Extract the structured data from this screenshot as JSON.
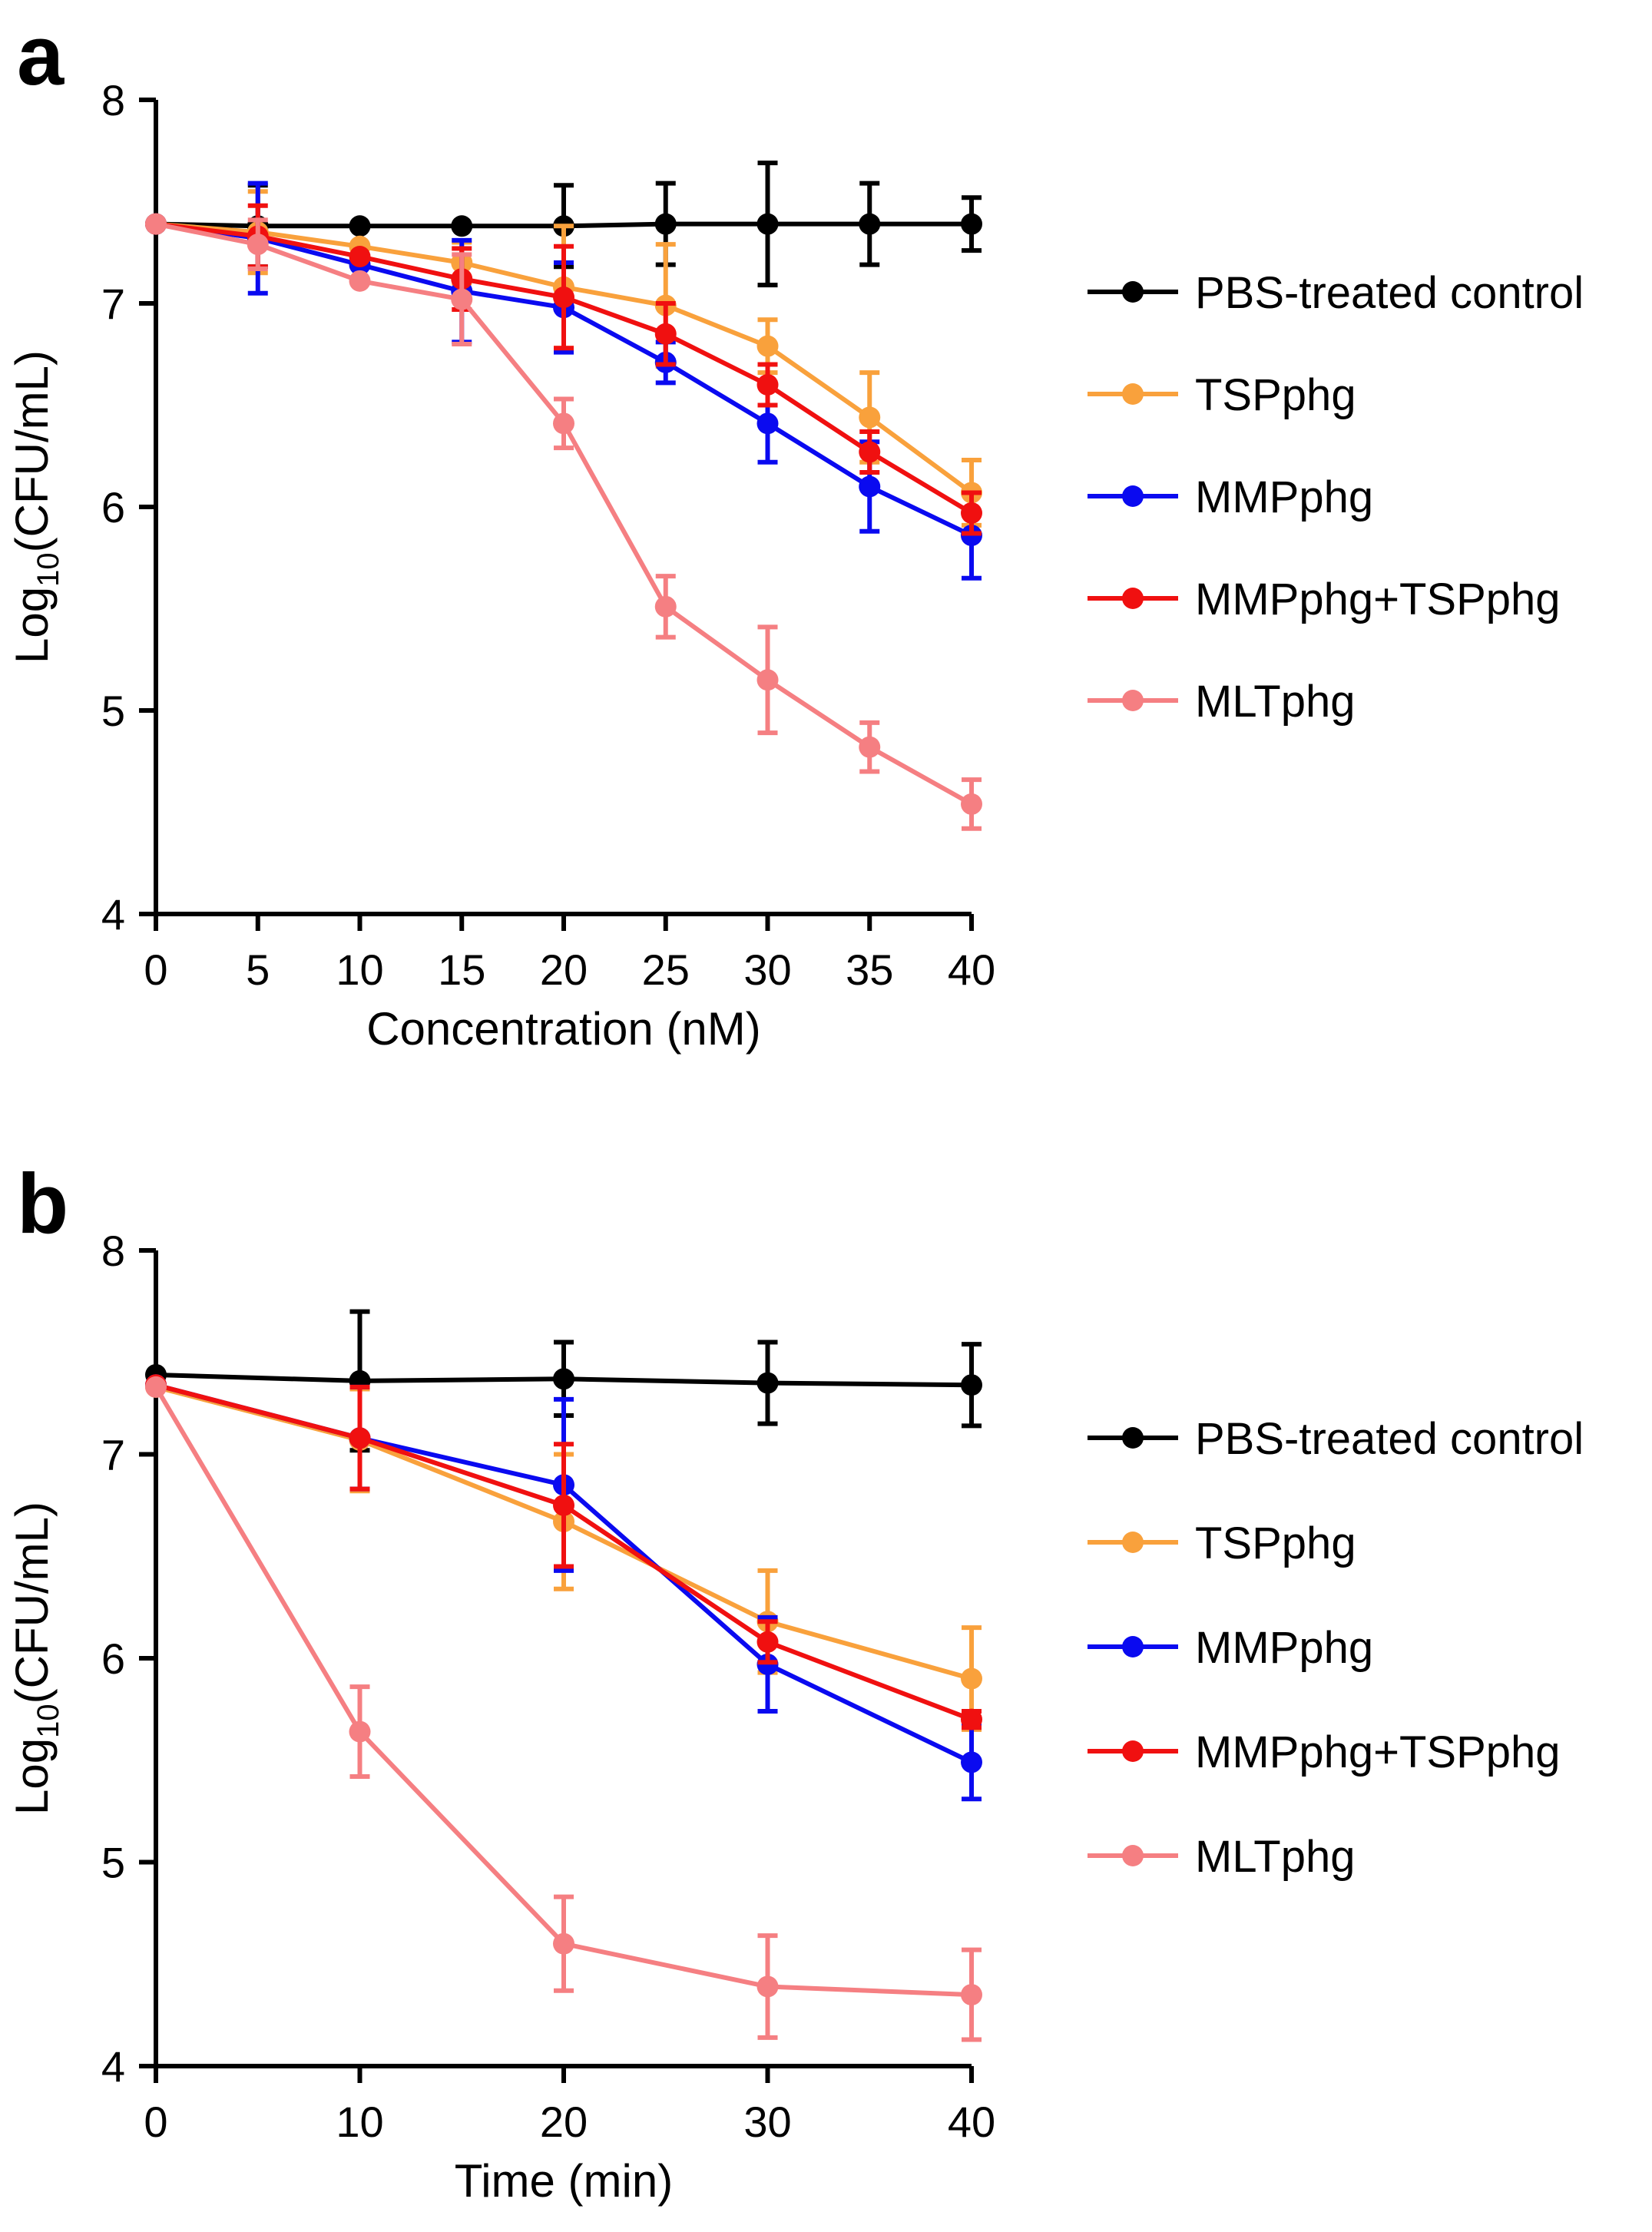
{
  "chart_data": [
    {
      "type": "line",
      "panel_label": "a",
      "xlabel": "Concentration (nM)",
      "ylabel_base": "Log",
      "ylabel_sub": "10",
      "ylabel_rest": "(CFU/mL)",
      "xlim": [
        0,
        40
      ],
      "ylim": [
        4,
        8
      ],
      "xticks": [
        0,
        5,
        10,
        15,
        20,
        25,
        30,
        35,
        40
      ],
      "yticks": [
        4,
        5,
        6,
        7,
        8
      ],
      "legend_position": "right",
      "x": [
        0,
        5,
        10,
        15,
        20,
        25,
        30,
        35,
        40
      ],
      "series": [
        {
          "name": "PBS-treated control",
          "color": "#000000",
          "values": [
            7.39,
            7.38,
            7.38,
            7.38,
            7.38,
            7.39,
            7.39,
            7.39,
            7.39
          ],
          "errors": [
            0.0,
            0.2,
            0.0,
            0.0,
            0.2,
            0.2,
            0.3,
            0.2,
            0.13
          ]
        },
        {
          "name": "TSPphg",
          "color": "#F9A13C",
          "values": [
            7.39,
            7.35,
            7.28,
            7.2,
            7.08,
            6.99,
            6.79,
            6.44,
            6.07
          ],
          "errors": [
            0.0,
            0.2,
            0.0,
            0.1,
            0.3,
            0.3,
            0.13,
            0.22,
            0.16
          ]
        },
        {
          "name": "MMPphg",
          "color": "#0A0AF0",
          "values": [
            7.39,
            7.32,
            7.19,
            7.06,
            6.98,
            6.71,
            6.41,
            6.1,
            5.86
          ],
          "errors": [
            0.0,
            0.27,
            0.0,
            0.25,
            0.22,
            0.1,
            0.19,
            0.22,
            0.21
          ]
        },
        {
          "name": "MMPphg+TSPphg",
          "color": "#F01010",
          "values": [
            7.39,
            7.33,
            7.23,
            7.12,
            7.03,
            6.85,
            6.6,
            6.27,
            5.97
          ],
          "errors": [
            0.0,
            0.15,
            0.0,
            0.15,
            0.25,
            0.15,
            0.1,
            0.1,
            0.1
          ]
        },
        {
          "name": "MLTphg",
          "color": "#F57F82",
          "values": [
            7.39,
            7.29,
            7.11,
            7.02,
            6.41,
            5.51,
            5.15,
            4.82,
            4.54
          ],
          "errors": [
            0.0,
            0.12,
            0.0,
            0.22,
            0.12,
            0.15,
            0.26,
            0.12,
            0.12
          ]
        }
      ]
    },
    {
      "type": "line",
      "panel_label": "b",
      "xlabel": "Time (min)",
      "ylabel_base": "Log",
      "ylabel_sub": "10",
      "ylabel_rest": "(CFU/mL)",
      "xlim": [
        0,
        40
      ],
      "ylim": [
        4,
        8
      ],
      "xticks": [
        0,
        10,
        20,
        30,
        40
      ],
      "yticks": [
        4,
        5,
        6,
        7,
        8
      ],
      "legend_position": "right",
      "x": [
        0,
        10,
        20,
        30,
        40
      ],
      "series": [
        {
          "name": "PBS-treated control",
          "color": "#000000",
          "values": [
            7.39,
            7.36,
            7.37,
            7.35,
            7.34
          ],
          "errors": [
            0.0,
            0.34,
            0.18,
            0.2,
            0.2
          ]
        },
        {
          "name": "TSPphg",
          "color": "#F9A13C",
          "values": [
            7.33,
            7.07,
            6.67,
            6.18,
            5.9
          ],
          "errors": [
            0.0,
            0.25,
            0.33,
            0.25,
            0.25
          ]
        },
        {
          "name": "MMPphg",
          "color": "#0A0AF0",
          "values": [
            7.34,
            7.08,
            6.85,
            5.97,
            5.49
          ],
          "errors": [
            0.0,
            0.25,
            0.42,
            0.23,
            0.18
          ]
        },
        {
          "name": "MMPphg+TSPphg",
          "color": "#F01010",
          "values": [
            7.34,
            7.08,
            6.75,
            6.08,
            5.7
          ],
          "errors": [
            0.0,
            0.25,
            0.3,
            0.1,
            0.04
          ]
        },
        {
          "name": "MLTphg",
          "color": "#F57F82",
          "values": [
            7.33,
            5.64,
            4.6,
            4.39,
            4.35
          ],
          "errors": [
            0.0,
            0.22,
            0.23,
            0.25,
            0.22
          ]
        }
      ]
    }
  ]
}
